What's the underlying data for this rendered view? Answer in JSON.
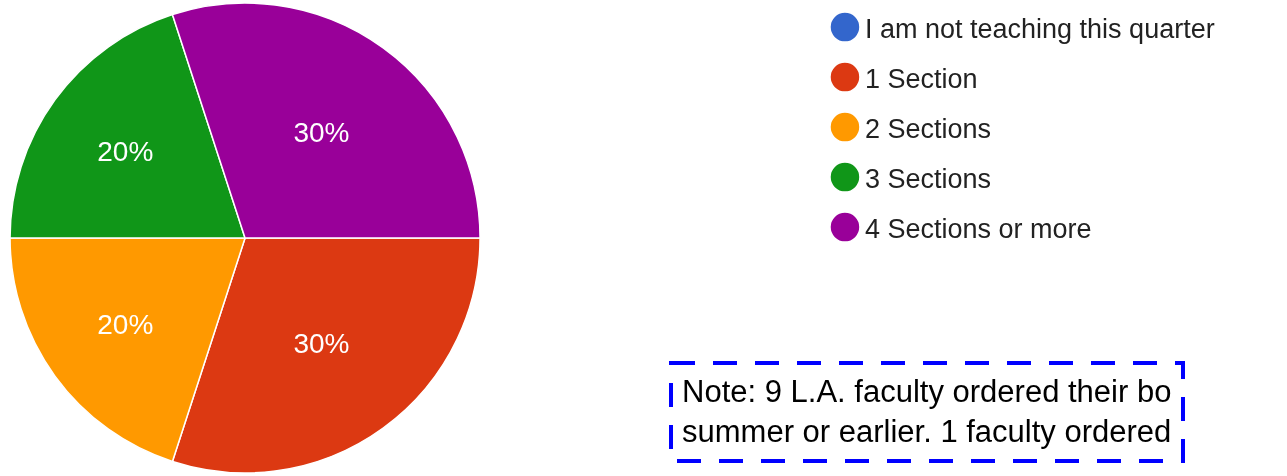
{
  "chart_data": {
    "type": "pie",
    "categories": [
      "I am not teaching this quarter",
      "1 Section",
      "2 Sections",
      "3 Sections",
      "4 Sections or more"
    ],
    "values": [
      0,
      30,
      20,
      20,
      30
    ],
    "colors": [
      "#3366cc",
      "#dc3912",
      "#ff9900",
      "#109618",
      "#990099"
    ],
    "value_labels": [
      null,
      "30%",
      "20%",
      "20%",
      "30%"
    ],
    "legend": "top right",
    "annotations": [
      "Note: 9 L.A. faculty ordered their bo\nsummer or earlier. 1 faculty ordered"
    ]
  }
}
